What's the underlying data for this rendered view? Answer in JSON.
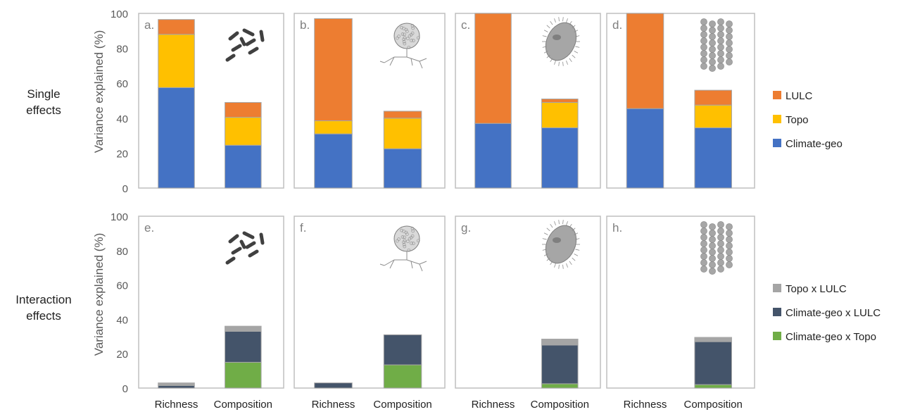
{
  "row_labels": [
    {
      "line1": "Single",
      "line2": "effects"
    },
    {
      "line1": "Interaction",
      "line2": "effects"
    }
  ],
  "ylabel": "Variance explained (%)",
  "yticks": [
    0,
    20,
    40,
    60,
    80,
    100
  ],
  "categories": [
    "Richness",
    "Composition"
  ],
  "legends": [
    {
      "items": [
        {
          "name": "LULC",
          "color": "#ED7D31"
        },
        {
          "name": "Topo",
          "color": "#FFC000"
        },
        {
          "name": "Climate-geo",
          "color": "#4472C4"
        }
      ]
    },
    {
      "items": [
        {
          "name": "Topo x LULC",
          "color": "#A5A5A5"
        },
        {
          "name": "Climate-geo x LULC",
          "color": "#44546A"
        },
        {
          "name": "Climate-geo x Topo",
          "color": "#70AD47"
        }
      ]
    }
  ],
  "panel_icons": [
    "bacteria-icon",
    "fungi-icon",
    "protist-icon",
    "nematode-chain-icon"
  ],
  "chart_data": [
    {
      "type": "bar",
      "stacked": true,
      "label": "a.",
      "categories": [
        "Richness",
        "Composition"
      ],
      "ylim": [
        0,
        100
      ],
      "series": [
        {
          "name": "Climate-geo",
          "color": "#4472C4",
          "values": [
            57.5,
            24.5
          ]
        },
        {
          "name": "Topo",
          "color": "#FFC000",
          "values": [
            30.5,
            16
          ]
        },
        {
          "name": "LULC",
          "color": "#ED7D31",
          "values": [
            8.5,
            8.5
          ]
        }
      ]
    },
    {
      "type": "bar",
      "stacked": true,
      "label": "b.",
      "categories": [
        "Richness",
        "Composition"
      ],
      "ylim": [
        0,
        100
      ],
      "series": [
        {
          "name": "Climate-geo",
          "color": "#4472C4",
          "values": [
            31,
            22.5
          ]
        },
        {
          "name": "Topo",
          "color": "#FFC000",
          "values": [
            7.5,
            17.5
          ]
        },
        {
          "name": "LULC",
          "color": "#ED7D31",
          "values": [
            58.5,
            4
          ]
        }
      ]
    },
    {
      "type": "bar",
      "stacked": true,
      "label": "c.",
      "categories": [
        "Richness",
        "Composition"
      ],
      "ylim": [
        0,
        100
      ],
      "series": [
        {
          "name": "Climate-geo",
          "color": "#4472C4",
          "values": [
            37,
            34.5
          ]
        },
        {
          "name": "Topo",
          "color": "#FFC000",
          "values": [
            0,
            14.5
          ]
        },
        {
          "name": "LULC",
          "color": "#ED7D31",
          "values": [
            63,
            2
          ]
        }
      ]
    },
    {
      "type": "bar",
      "stacked": true,
      "label": "d.",
      "categories": [
        "Richness",
        "Composition"
      ],
      "ylim": [
        0,
        100
      ],
      "series": [
        {
          "name": "Climate-geo",
          "color": "#4472C4",
          "values": [
            45.5,
            34.5
          ]
        },
        {
          "name": "Topo",
          "color": "#FFC000",
          "values": [
            0,
            13
          ]
        },
        {
          "name": "LULC",
          "color": "#ED7D31",
          "values": [
            54.5,
            8.5
          ]
        }
      ]
    },
    {
      "type": "bar",
      "stacked": true,
      "label": "e.",
      "categories": [
        "Richness",
        "Composition"
      ],
      "ylim": [
        0,
        100
      ],
      "series": [
        {
          "name": "Climate-geo x Topo",
          "color": "#70AD47",
          "values": [
            0,
            15
          ]
        },
        {
          "name": "Climate-geo x LULC",
          "color": "#44546A",
          "values": [
            1.5,
            18
          ]
        },
        {
          "name": "Topo x LULC",
          "color": "#A5A5A5",
          "values": [
            1.5,
            3
          ]
        }
      ]
    },
    {
      "type": "bar",
      "stacked": true,
      "label": "f.",
      "categories": [
        "Richness",
        "Composition"
      ],
      "ylim": [
        0,
        100
      ],
      "series": [
        {
          "name": "Climate-geo x Topo",
          "color": "#70AD47",
          "values": [
            0,
            13.5
          ]
        },
        {
          "name": "Climate-geo x LULC",
          "color": "#44546A",
          "values": [
            3,
            17.5
          ]
        },
        {
          "name": "Topo x LULC",
          "color": "#A5A5A5",
          "values": [
            0,
            0
          ]
        }
      ]
    },
    {
      "type": "bar",
      "stacked": true,
      "label": "g.",
      "categories": [
        "Richness",
        "Composition"
      ],
      "ylim": [
        0,
        100
      ],
      "series": [
        {
          "name": "Climate-geo x Topo",
          "color": "#70AD47",
          "values": [
            0,
            2.5
          ]
        },
        {
          "name": "Climate-geo x LULC",
          "color": "#44546A",
          "values": [
            0,
            22.5
          ]
        },
        {
          "name": "Topo x LULC",
          "color": "#A5A5A5",
          "values": [
            0,
            3.5
          ]
        }
      ]
    },
    {
      "type": "bar",
      "stacked": true,
      "label": "h.",
      "categories": [
        "Richness",
        "Composition"
      ],
      "ylim": [
        0,
        100
      ],
      "series": [
        {
          "name": "Climate-geo x Topo",
          "color": "#70AD47",
          "values": [
            0,
            2
          ]
        },
        {
          "name": "Climate-geo x LULC",
          "color": "#44546A",
          "values": [
            0,
            25
          ]
        },
        {
          "name": "Topo x LULC",
          "color": "#A5A5A5",
          "values": [
            0,
            2.5
          ]
        }
      ]
    }
  ]
}
